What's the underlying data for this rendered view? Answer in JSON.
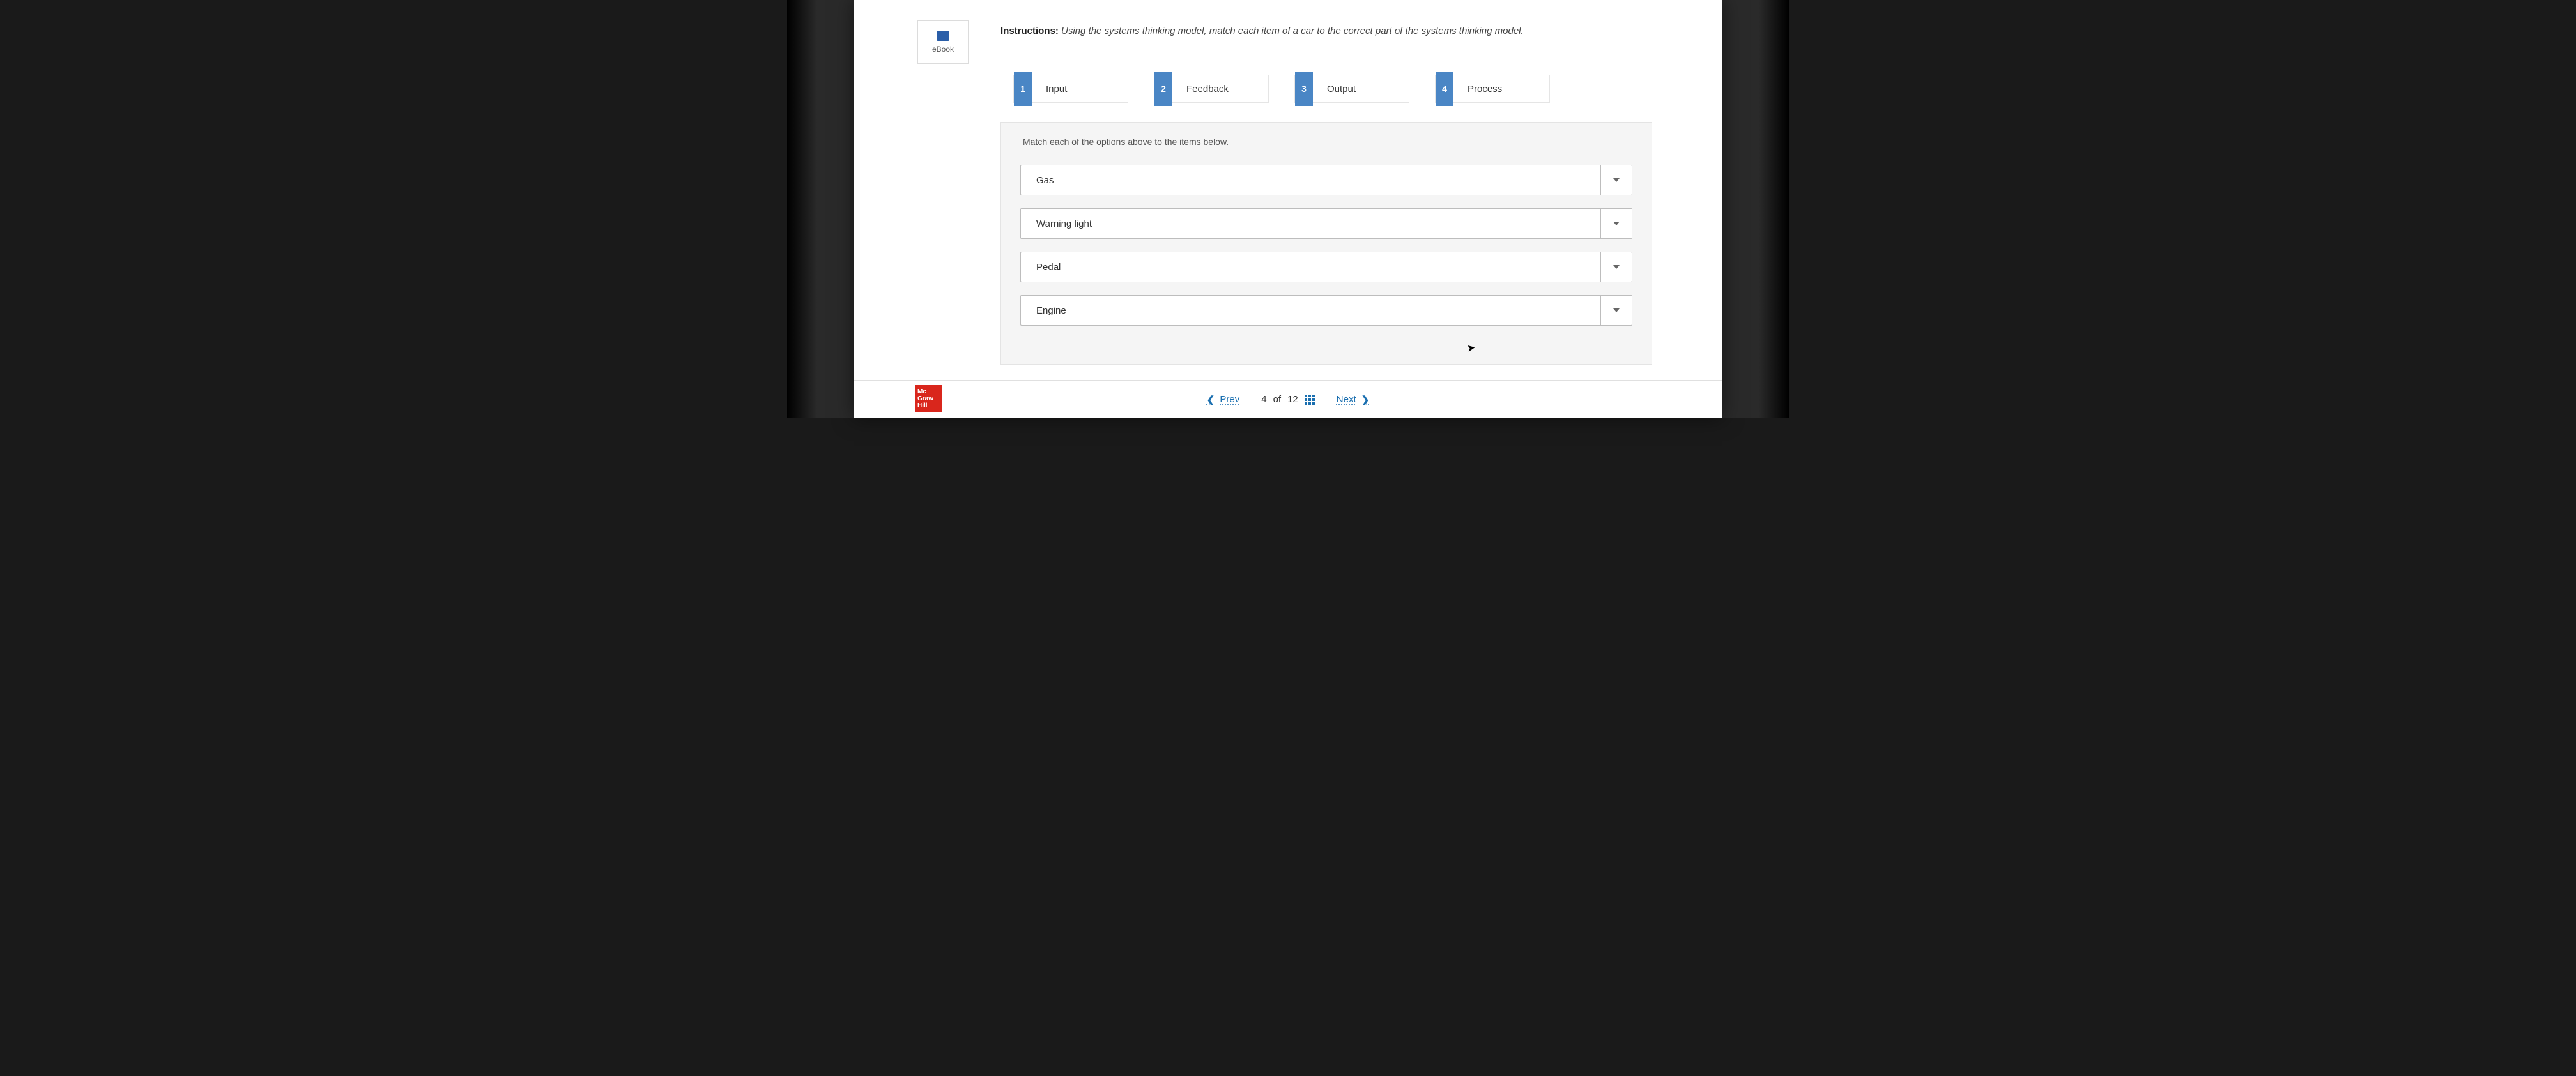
{
  "sidebar": {
    "ebook_label": "eBook"
  },
  "instructions": {
    "prefix": "Instructions:",
    "text": "Using the systems thinking model, match each item of a car to the correct part of the systems thinking model."
  },
  "options": [
    {
      "num": "1",
      "label": "Input"
    },
    {
      "num": "2",
      "label": "Feedback"
    },
    {
      "num": "3",
      "label": "Output"
    },
    {
      "num": "4",
      "label": "Process"
    }
  ],
  "match": {
    "hint": "Match each of the options above to the items below.",
    "rows": [
      {
        "label": "Gas"
      },
      {
        "label": "Warning light"
      },
      {
        "label": "Pedal"
      },
      {
        "label": "Engine"
      }
    ]
  },
  "footer": {
    "prev": "Prev",
    "next": "Next",
    "current": "4",
    "sep": "of",
    "total": "12",
    "logo_l1": "Mc",
    "logo_l2": "Graw",
    "logo_l3": "Hill"
  },
  "colors": {
    "option_tab": "#4a86c5",
    "link": "#1a6fb0",
    "logo_bg": "#d9261c"
  }
}
